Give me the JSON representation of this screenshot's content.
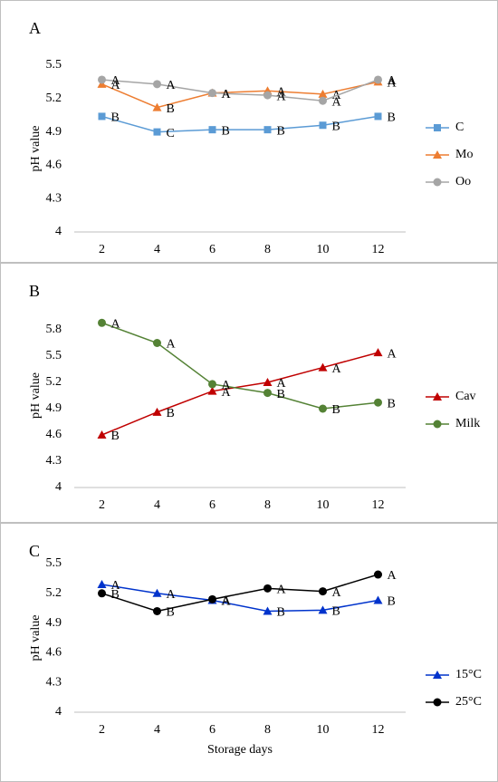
{
  "chart_data": [
    {
      "type": "line",
      "panel_label": "A",
      "ylabel": "pH value",
      "categories": [
        2,
        4,
        6,
        8,
        10,
        12
      ],
      "ylim": [
        4,
        5.5
      ],
      "yticks": [
        4,
        4.3,
        4.6,
        4.9,
        5.2,
        5.5
      ],
      "series": [
        {
          "name": "C",
          "color": "#5b9bd5",
          "marker": "square",
          "values": [
            5.04,
            4.9,
            4.92,
            4.92,
            4.96,
            5.04
          ],
          "letters": [
            "B",
            "C",
            "B",
            "B",
            "B",
            "B"
          ]
        },
        {
          "name": "Mo",
          "color": "#ed7d31",
          "marker": "triangle",
          "values": [
            5.33,
            5.12,
            5.25,
            5.27,
            5.24,
            5.35
          ],
          "letters": [
            "A",
            "B",
            "A",
            "A",
            "A",
            "A"
          ]
        },
        {
          "name": "Oo",
          "color": "#a5a5a5",
          "marker": "circle",
          "values": [
            5.37,
            5.33,
            5.25,
            5.23,
            5.18,
            5.37
          ],
          "letters": [
            "A",
            "A",
            "A",
            "A",
            "A",
            "A"
          ]
        }
      ]
    },
    {
      "type": "line",
      "panel_label": "B",
      "ylabel": "pH value",
      "categories": [
        2,
        4,
        6,
        8,
        10,
        12
      ],
      "ylim": [
        4,
        6.1
      ],
      "yticks": [
        4,
        4.3,
        4.6,
        4.9,
        5.2,
        5.5,
        5.8
      ],
      "series": [
        {
          "name": "Cav",
          "color": "#c00000",
          "marker": "triangle",
          "values": [
            4.6,
            4.86,
            5.1,
            5.2,
            5.37,
            5.54
          ],
          "letters": [
            "B",
            "B",
            "A",
            "A",
            "A",
            "A"
          ]
        },
        {
          "name": "Milk",
          "color": "#548235",
          "marker": "circle",
          "values": [
            5.88,
            5.65,
            5.18,
            5.08,
            4.9,
            4.97
          ],
          "letters": [
            "A",
            "A",
            "A",
            "B",
            "B",
            "B"
          ]
        }
      ]
    },
    {
      "type": "line",
      "panel_label": "C",
      "ylabel": "pH value",
      "xlabel": "Storage days",
      "categories": [
        2,
        4,
        6,
        8,
        10,
        12
      ],
      "ylim": [
        4,
        5.5
      ],
      "yticks": [
        4,
        4.3,
        4.6,
        4.9,
        5.2,
        5.5
      ],
      "series": [
        {
          "name": "15°C",
          "color": "#0033cc",
          "marker": "triangle",
          "values": [
            5.29,
            5.2,
            5.13,
            5.02,
            5.03,
            5.13
          ],
          "letters": [
            "A",
            "A",
            "A",
            "B",
            "B",
            "B"
          ]
        },
        {
          "name": "25°C",
          "color": "#000000",
          "marker": "circle",
          "values": [
            5.2,
            5.02,
            5.14,
            5.25,
            5.22,
            5.39
          ],
          "letters": [
            "B",
            "B",
            "A",
            "A",
            "A",
            "A"
          ]
        }
      ]
    }
  ]
}
